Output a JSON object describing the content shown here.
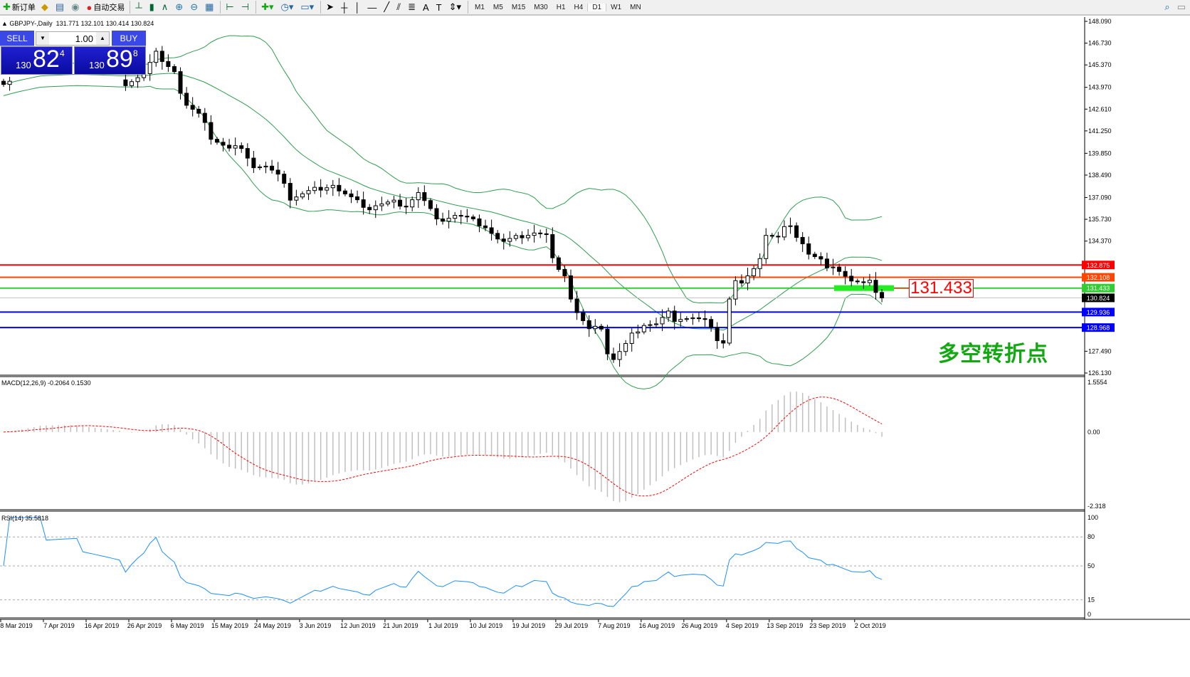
{
  "toolbar": {
    "new_order": "新订单",
    "auto_trading": "自动交易",
    "timeframes": [
      "M1",
      "M5",
      "M15",
      "M30",
      "H1",
      "H4",
      "D1",
      "W1",
      "MN"
    ],
    "active_timeframe": "D1",
    "icons": [
      "new-order-icon",
      "market-watch-icon",
      "navigator-icon",
      "signals-icon",
      "auto-trading-icon",
      "bar-chart-icon",
      "candlestick-icon",
      "line-chart-icon",
      "zoom-in-icon",
      "zoom-out-icon",
      "tile-windows-icon",
      "autoscroll-icon",
      "chart-shift-icon",
      "indicators-icon",
      "periods-icon",
      "templates-icon",
      "cursor-icon",
      "crosshair-icon",
      "vertical-line-icon",
      "horizontal-line-icon",
      "trendline-icon",
      "equidistant-channel-icon",
      "fibonacci-icon",
      "text-icon",
      "text-label-icon",
      "arrows-icon",
      "search-icon",
      "chat-icon"
    ]
  },
  "chart": {
    "symbol_line": "GBPJPY-,Daily",
    "ohlc": "131.771 132.101 130.414 130.824",
    "macd_header": "MACD(12,26,9) -0.2064 0.1530",
    "rsi_header": "RSI(14) 35.5818",
    "annotation_price": "131.433",
    "annotation_text": "多空转折点"
  },
  "one_click": {
    "sell": "SELL",
    "buy": "BUY",
    "lot": "1.00",
    "sell_pre": "130",
    "sell_big": "82",
    "sell_sup": "4",
    "buy_pre": "130",
    "buy_big": "89",
    "buy_sup": "8"
  },
  "chart_data": {
    "type": "candlestick",
    "price_axis": [
      "148.090",
      "146.730",
      "145.370",
      "143.970",
      "142.610",
      "141.250",
      "139.850",
      "138.490",
      "137.090",
      "135.730",
      "134.370",
      "127.490",
      "126.130"
    ],
    "price_range": [
      126.13,
      148.09
    ],
    "date_labels": [
      "8 Mar 2019",
      "7 Apr 2019",
      "16 Apr 2019",
      "26 Apr 2019",
      "6 May 2019",
      "15 May 2019",
      "24 May 2019",
      "3 Jun 2019",
      "12 Jun 2019",
      "21 Jun 2019",
      "1 Jul 2019",
      "10 Jul 2019",
      "19 Jul 2019",
      "29 Jul 2019",
      "7 Aug 2019",
      "16 Aug 2019",
      "26 Aug 2019",
      "4 Sep 2019",
      "13 Sep 2019",
      "23 Sep 2019",
      "2 Oct 2019"
    ],
    "bar_count": 145,
    "close_keypoints": [
      [
        0,
        144.3
      ],
      [
        2,
        144.6
      ],
      [
        6,
        145.0
      ],
      [
        13,
        144.8
      ],
      [
        20,
        144.2
      ],
      [
        23,
        144.8
      ],
      [
        25,
        146.1
      ],
      [
        28,
        145.0
      ],
      [
        29,
        143.6
      ],
      [
        30,
        142.8
      ],
      [
        33,
        141.9
      ],
      [
        34,
        140.8
      ],
      [
        37,
        140.1
      ],
      [
        39,
        140.3
      ],
      [
        41,
        139.0
      ],
      [
        43,
        139.0
      ],
      [
        46,
        138.1
      ],
      [
        47,
        137.0
      ],
      [
        49,
        137.3
      ],
      [
        51,
        137.6
      ],
      [
        54,
        137.9
      ],
      [
        55,
        137.5
      ],
      [
        58,
        136.8
      ],
      [
        60,
        136.4
      ],
      [
        61,
        136.6
      ],
      [
        64,
        136.8
      ],
      [
        66,
        136.6
      ],
      [
        68,
        137.4
      ],
      [
        70,
        136.3
      ],
      [
        71,
        135.6
      ],
      [
        74,
        136.0
      ],
      [
        76,
        135.8
      ],
      [
        79,
        135.3
      ],
      [
        81,
        134.5
      ],
      [
        82,
        134.3
      ],
      [
        85,
        134.7
      ],
      [
        87,
        134.9
      ],
      [
        89,
        134.7
      ],
      [
        90,
        133.2
      ],
      [
        92,
        132.3
      ],
      [
        93,
        130.8
      ],
      [
        94,
        129.9
      ],
      [
        96,
        128.8
      ],
      [
        98,
        129.0
      ],
      [
        99,
        127.4
      ],
      [
        100,
        127.0
      ],
      [
        102,
        127.9
      ],
      [
        103,
        128.5
      ],
      [
        105,
        129.2
      ],
      [
        107,
        129.2
      ],
      [
        109,
        129.9
      ],
      [
        110,
        129.2
      ],
      [
        111,
        129.6
      ],
      [
        113,
        129.6
      ],
      [
        115,
        129.4
      ],
      [
        117,
        128.3
      ],
      [
        118,
        128.1
      ],
      [
        119,
        130.8
      ],
      [
        120,
        131.9
      ],
      [
        121,
        131.7
      ],
      [
        123,
        132.5
      ],
      [
        124,
        133.4
      ],
      [
        125,
        134.8
      ],
      [
        127,
        134.6
      ],
      [
        128,
        135.2
      ],
      [
        129,
        135.2
      ],
      [
        131,
        134.3
      ],
      [
        132,
        133.6
      ],
      [
        134,
        133.2
      ],
      [
        135,
        132.6
      ],
      [
        137,
        132.6
      ],
      [
        139,
        131.9
      ],
      [
        141,
        131.7
      ],
      [
        142,
        131.8
      ],
      [
        144,
        130.824
      ]
    ],
    "horizontal_lines": [
      {
        "price": "132.875",
        "color": "#ff0000"
      },
      {
        "price": "132.108",
        "color": "#ff4500"
      },
      {
        "price": "131.433",
        "color": "#32cd32"
      },
      {
        "price": "130.824",
        "color": "#c0c0c0",
        "label_bg": "#000000"
      },
      {
        "price": "129.936",
        "color": "#0000ff"
      },
      {
        "price": "128.968",
        "color": "#0000ff"
      }
    ],
    "bollinger_color": "#2e9e4f",
    "macd": {
      "axis": [
        "1.5554",
        "0.00",
        "-2.318"
      ],
      "range": [
        -2.318,
        1.5554
      ],
      "signal_color": "#ff0000",
      "hist_color": "#c0c0c0"
    },
    "rsi": {
      "axis": [
        "100",
        "80",
        "50",
        "15",
        "0"
      ],
      "levels": [
        80,
        50,
        15
      ],
      "color": "#1e90ff"
    }
  }
}
